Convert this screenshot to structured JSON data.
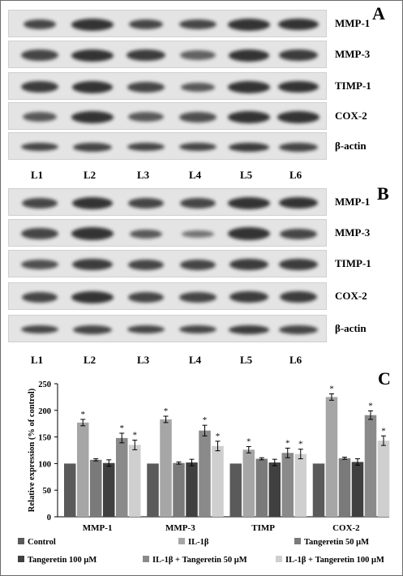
{
  "panels": {
    "a": {
      "letter": "A",
      "rows": [
        "MMP-1",
        "MMP-3",
        "TIMP-1",
        "COX-2",
        "β-actin"
      ],
      "lanes": [
        "L1",
        "L2",
        "L3",
        "L4",
        "L5",
        "L6"
      ]
    },
    "b": {
      "letter": "B",
      "rows": [
        "MMP-1",
        "MMP-3",
        "TIMP-1",
        "COX-2",
        "β-actin"
      ],
      "lanes": [
        "L1",
        "L2",
        "L3",
        "L4",
        "L5",
        "L6"
      ]
    },
    "c": {
      "letter": "C"
    }
  },
  "chart_data": {
    "type": "bar",
    "categories": [
      "MMP-1",
      "MMP-3",
      "TIMP",
      "COX-2"
    ],
    "ylabel": "Relative expression (% of control)",
    "ylim": [
      0,
      250
    ],
    "yticks": [
      0,
      50,
      100,
      150,
      200,
      250
    ],
    "grid": false,
    "legend_position": "bottom",
    "significance_marker": "*",
    "series": [
      {
        "name": "Control",
        "values": [
          100,
          100,
          100,
          100
        ],
        "errors": [
          0,
          0,
          0,
          0
        ],
        "significant": [
          false,
          false,
          false,
          false
        ],
        "color": "#5a5a5a"
      },
      {
        "name": "IL-1β",
        "values": [
          177,
          183,
          126,
          225
        ],
        "errors": [
          6,
          6,
          6,
          6
        ],
        "significant": [
          true,
          true,
          true,
          true
        ],
        "color": "#a6a6a6"
      },
      {
        "name": "Tangeretin 50 μM",
        "values": [
          107,
          101,
          109,
          110
        ],
        "errors": [
          2,
          2,
          2,
          2
        ],
        "significant": [
          false,
          false,
          false,
          false
        ],
        "color": "#7a7a7a"
      },
      {
        "name": "Tangeretin 100 μM",
        "values": [
          101,
          102,
          102,
          103
        ],
        "errors": [
          6,
          6,
          6,
          6
        ],
        "significant": [
          false,
          false,
          false,
          false
        ],
        "color": "#404040"
      },
      {
        "name": "IL-1β + Tangeretin 50 μM",
        "values": [
          148,
          162,
          120,
          191
        ],
        "errors": [
          9,
          10,
          9,
          8
        ],
        "significant": [
          true,
          true,
          true,
          true
        ],
        "color": "#8a8a8a"
      },
      {
        "name": "IL-1β + Tangeretin 100 μM",
        "values": [
          135,
          133,
          118,
          143
        ],
        "errors": [
          9,
          9,
          9,
          9
        ],
        "significant": [
          true,
          true,
          true,
          true
        ],
        "color": "#cfcfcf"
      }
    ]
  }
}
